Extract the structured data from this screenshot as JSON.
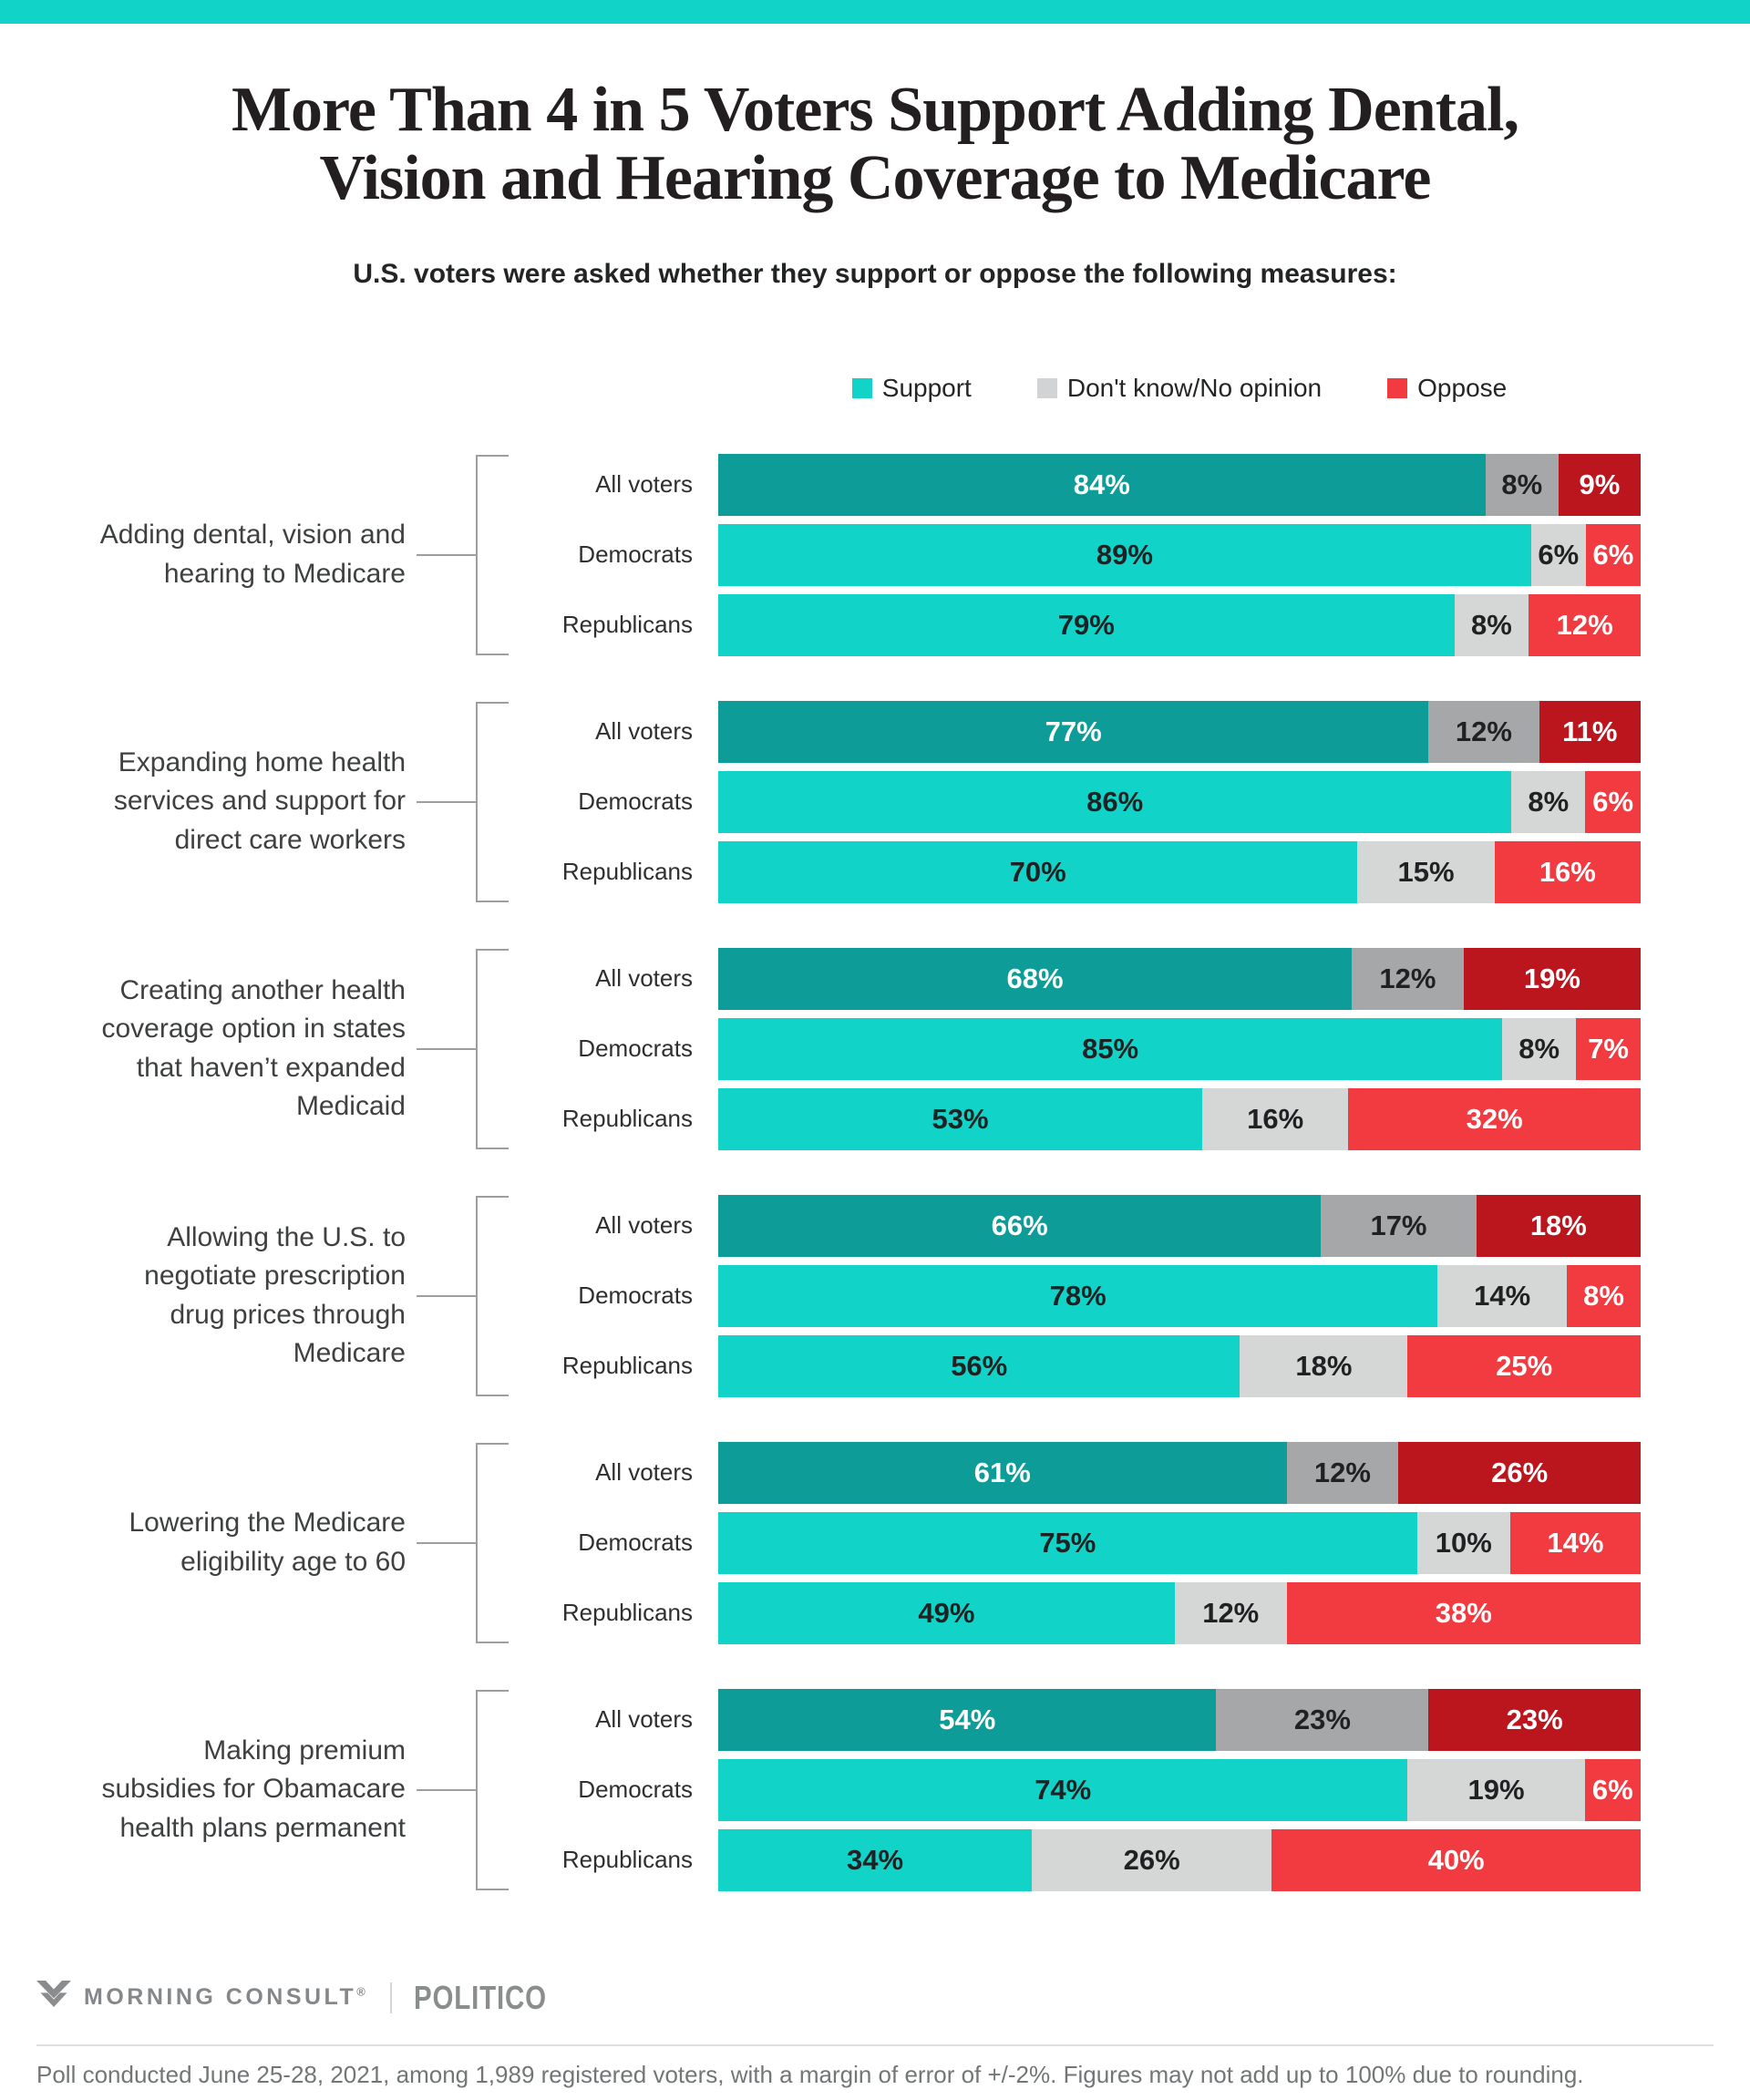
{
  "page": {
    "top_strip_color": "#11d3c7"
  },
  "header": {
    "title_line1": "More Than 4 in 5 Voters Support Adding Dental,",
    "title_line2": "Vision and Hearing Coverage to Medicare",
    "subtitle": "U.S. voters were asked whether they support or oppose the following measures:"
  },
  "legend": {
    "items": [
      {
        "label": "Support",
        "color": "#11d3c7"
      },
      {
        "label": "Don't know/No opinion",
        "color": "#d2d3d4"
      },
      {
        "label": "Oppose",
        "color": "#f23b40"
      }
    ]
  },
  "colors": {
    "support_all": "#0d9c97",
    "support_party": "#11d3c7",
    "dont_know_all": "#a6a7a8",
    "dont_know_party": "#d5d6d6",
    "oppose_all": "#bb151d",
    "oppose_party": "#f23b40",
    "value_text_dark": "#1f2122",
    "value_text_light": "#ffffff",
    "bracket_line": "#9c9e9f"
  },
  "chart_data": {
    "type": "bar",
    "orientation": "horizontal",
    "stacked": true,
    "unit": "%",
    "axis_range": [
      0,
      100
    ],
    "grid": false,
    "legend_position": "top",
    "title": "More Than 4 in 5 Voters Support Adding Dental, Vision and Hearing Coverage to Medicare",
    "subtitle": "U.S. voters were asked whether they support or oppose the following measures:",
    "series_names": [
      "Support",
      "Don't know/No opinion",
      "Oppose"
    ],
    "row_labels": [
      "All voters",
      "Democrats",
      "Republicans"
    ],
    "groups": [
      {
        "measure": "Adding dental, vision and hearing to Medicare",
        "rows": [
          {
            "label": "All voters",
            "values": [
              84,
              8,
              9
            ]
          },
          {
            "label": "Democrats",
            "values": [
              89,
              6,
              6
            ]
          },
          {
            "label": "Republicans",
            "values": [
              79,
              8,
              12
            ]
          }
        ]
      },
      {
        "measure": "Expanding home health services and support for direct care workers",
        "rows": [
          {
            "label": "All voters",
            "values": [
              77,
              12,
              11
            ]
          },
          {
            "label": "Democrats",
            "values": [
              86,
              8,
              6
            ]
          },
          {
            "label": "Republicans",
            "values": [
              70,
              15,
              16
            ]
          }
        ]
      },
      {
        "measure": "Creating another health coverage option in states that haven’t expanded Medicaid",
        "rows": [
          {
            "label": "All voters",
            "values": [
              68,
              12,
              19
            ]
          },
          {
            "label": "Democrats",
            "values": [
              85,
              8,
              7
            ]
          },
          {
            "label": "Republicans",
            "values": [
              53,
              16,
              32
            ]
          }
        ]
      },
      {
        "measure": "Allowing the U.S. to negotiate prescription drug prices through Medicare",
        "rows": [
          {
            "label": "All voters",
            "values": [
              66,
              17,
              18
            ]
          },
          {
            "label": "Democrats",
            "values": [
              78,
              14,
              8
            ]
          },
          {
            "label": "Republicans",
            "values": [
              56,
              18,
              25
            ]
          }
        ]
      },
      {
        "measure": "Lowering the Medicare eligibility age to 60",
        "rows": [
          {
            "label": "All voters",
            "values": [
              61,
              12,
              26
            ]
          },
          {
            "label": "Democrats",
            "values": [
              75,
              10,
              14
            ]
          },
          {
            "label": "Republicans",
            "values": [
              49,
              12,
              38
            ]
          }
        ]
      },
      {
        "measure": "Making premium subsidies for Obamacare health plans permanent",
        "rows": [
          {
            "label": "All voters",
            "values": [
              54,
              23,
              23
            ]
          },
          {
            "label": "Democrats",
            "values": [
              74,
              19,
              6
            ]
          },
          {
            "label": "Republicans",
            "values": [
              34,
              26,
              40
            ]
          }
        ]
      }
    ]
  },
  "footer": {
    "brand_left": "MORNING CONSULT",
    "brand_reg_mark": "®",
    "brand_right": "POLITICO",
    "footnote": "Poll conducted June 25-28, 2021, among 1,989 registered voters, with a margin of error of +/-2%. Figures may not add up to 100% due to rounding."
  }
}
